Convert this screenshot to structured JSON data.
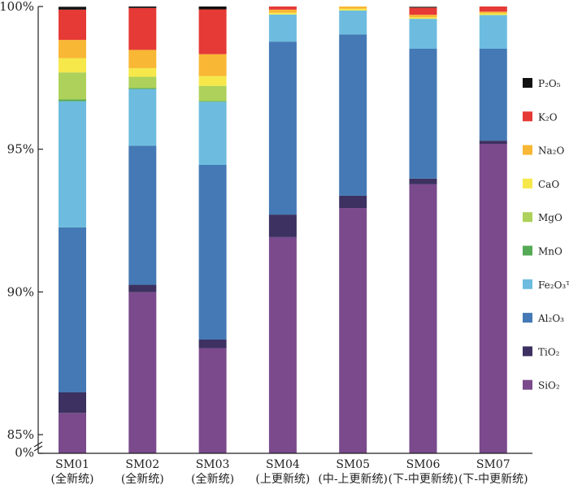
{
  "chart_data": {
    "type": "bar",
    "stacked": true,
    "categories": [
      "SM01",
      "SM02",
      "SM03",
      "SM04",
      "SM05",
      "SM06",
      "SM07"
    ],
    "category_sublabels": [
      "(全新统)",
      "(全新统)",
      "(全新统)",
      "(上更新统)",
      "(中-上更新统)",
      "(下-中更新统)",
      "(下-中更新统)"
    ],
    "ylim": [
      85,
      100
    ],
    "y_axis_break": true,
    "y_ticks": [
      {
        "value": 85,
        "label": "85%"
      },
      {
        "value": 90,
        "label": "90%"
      },
      {
        "value": 95,
        "label": "95%"
      },
      {
        "value": 100,
        "label": "100%"
      }
    ],
    "y_break_label": "0%",
    "legend_position": "right",
    "series": [
      {
        "name": "SiO₂",
        "color": "#7a4a8c",
        "values": [
          85.76,
          89.99,
          88.03,
          91.92,
          92.94,
          93.77,
          95.19
        ]
      },
      {
        "name": "TiO₂",
        "color": "#3c3160",
        "values": [
          0.72,
          0.26,
          0.3,
          0.79,
          0.43,
          0.2,
          0.11
        ]
      },
      {
        "name": "Al₂O₃",
        "color": "#4479b5",
        "values": [
          5.78,
          4.87,
          6.12,
          6.06,
          5.65,
          4.55,
          3.22
        ]
      },
      {
        "name": "Fe₂O₃ᵀ",
        "color": "#6dbcdf",
        "values": [
          4.42,
          1.99,
          2.21,
          0.95,
          0.84,
          1.05,
          1.18
        ]
      },
      {
        "name": "MnO",
        "color": "#55aa55",
        "values": [
          0.06,
          0.03,
          0.03,
          0.0,
          0.0,
          0.0,
          0.0
        ]
      },
      {
        "name": "MgO",
        "color": "#add15a",
        "values": [
          0.95,
          0.4,
          0.53,
          0.0,
          0.0,
          0.0,
          0.0
        ]
      },
      {
        "name": "CaO",
        "color": "#f6e84a",
        "values": [
          0.5,
          0.3,
          0.34,
          0.06,
          0.06,
          0.05,
          0.06
        ]
      },
      {
        "name": "Na₂O",
        "color": "#f8b734",
        "values": [
          0.64,
          0.64,
          0.77,
          0.11,
          0.08,
          0.09,
          0.06
        ]
      },
      {
        "name": "K₂O",
        "color": "#e53a35",
        "values": [
          1.06,
          1.47,
          1.57,
          0.17,
          0.06,
          0.25,
          0.18
        ]
      },
      {
        "name": "P₂O₅",
        "color": "#111111",
        "values": [
          0.1,
          0.05,
          0.1,
          0.05,
          0.02,
          0.03,
          0.01
        ]
      }
    ]
  }
}
